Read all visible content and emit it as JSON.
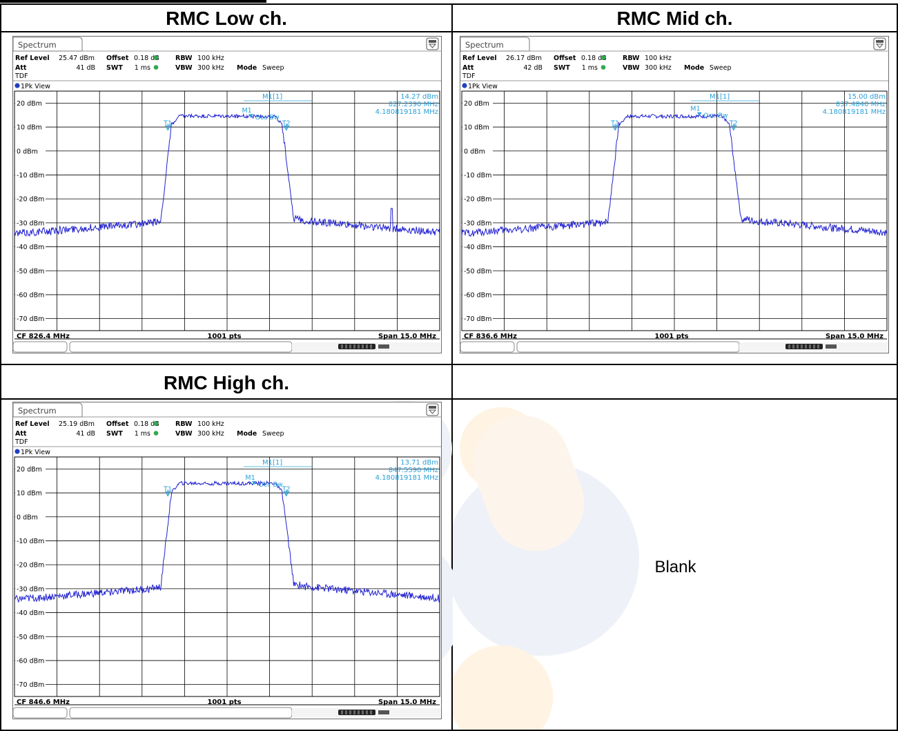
{
  "headers": {
    "low": "RMC Low ch.",
    "mid": "RMC Mid ch.",
    "high": "RMC High ch.",
    "empty": ""
  },
  "blank_label": "Blank",
  "colors": {
    "trace": "#1f1fd0",
    "marker": "#2aa0d8",
    "grid": "#000000",
    "screen_bg": "#ffffff"
  },
  "panels": [
    {
      "key": "low",
      "tab": "Spectrum",
      "ref_level_label": "Ref Level",
      "ref_level": "25.47 dBm",
      "offset_label": "Offset",
      "offset": "0.18 dB",
      "rbw_label": "RBW",
      "rbw": "100 kHz",
      "att_label": "Att",
      "att": "41 dB",
      "swt_label": "SWT",
      "swt": "1 ms",
      "vbw_label": "VBW",
      "vbw": "300 kHz",
      "mode_label": "Mode",
      "mode": "Sweep",
      "tdf": "TDF",
      "view": "1Pk View",
      "marker_name": "M1[1]",
      "marker_level": "14.27 dBm",
      "marker_freq": "827.2390 MHz",
      "occ_bw_value": "4.180819181 MHz",
      "cf": "CF 826.4 MHz",
      "pts": "1001 pts",
      "span": "Span 15.0 MHz",
      "m1": "M1",
      "t1": "T1",
      "t2": "T2",
      "occ_bw_label": "Occ Bw",
      "spur": true
    },
    {
      "key": "mid",
      "tab": "Spectrum",
      "ref_level_label": "Ref Level",
      "ref_level": "26.17 dBm",
      "offset_label": "Offset",
      "offset": "0.18 dB",
      "rbw_label": "RBW",
      "rbw": "100 kHz",
      "att_label": "Att",
      "att": "42 dB",
      "swt_label": "SWT",
      "swt": "1 ms",
      "vbw_label": "VBW",
      "vbw": "300 kHz",
      "mode_label": "Mode",
      "mode": "Sweep",
      "tdf": "TDF",
      "view": "1Pk View",
      "marker_name": "M1[1]",
      "marker_level": "15.00 dBm",
      "marker_freq": "837.4840 MHz",
      "occ_bw_value": "4.180819181 MHz",
      "cf": "CF 836.6 MHz",
      "pts": "1001 pts",
      "span": "Span 15.0 MHz",
      "m1": "M1",
      "t1": "T1",
      "t2": "T2",
      "occ_bw_label": "Occ Bw",
      "spur": false
    },
    {
      "key": "high",
      "tab": "Spectrum",
      "ref_level_label": "Ref Level",
      "ref_level": "25.19 dBm",
      "offset_label": "Offset",
      "offset": "0.18 dB",
      "rbw_label": "RBW",
      "rbw": "100 kHz",
      "att_label": "Att",
      "att": "41 dB",
      "swt_label": "SWT",
      "swt": "1 ms",
      "vbw_label": "VBW",
      "vbw": "300 kHz",
      "mode_label": "Mode",
      "mode": "Sweep",
      "tdf": "TDF",
      "view": "1Pk View",
      "marker_name": "M1[1]",
      "marker_level": "13.71 dBm",
      "marker_freq": "847.5590 MHz",
      "occ_bw_value": "4.180819181 MHz",
      "cf": "CF 846.6 MHz",
      "pts": "1001 pts",
      "span": "Span 15.0 MHz",
      "m1": "M1",
      "t1": "T1",
      "t2": "T2",
      "occ_bw_label": "Occ Bw",
      "spur": false
    }
  ],
  "chart_data": [
    {
      "type": "line",
      "xlabel": "",
      "ylabel": "",
      "x_center_mhz": 826.4,
      "x_span_mhz": 15.0,
      "ylim": [
        -75,
        25
      ],
      "yticks": [
        "20 dBm",
        "10 dBm",
        "0 dBm",
        "-10 dBm",
        "-20 dBm",
        "-30 dBm",
        "-40 dBm",
        "-50 dBm",
        "-60 dBm",
        "-70 dBm"
      ],
      "series": [
        {
          "shape": [
            [
              824.3,
              -29
            ],
            [
              824.45,
              12
            ],
            [
              828.3,
              12
            ],
            [
              828.47,
              -29
            ]
          ],
          "noise_floor": -32,
          "plateau": 15
        }
      ],
      "marker": {
        "x": 827.239,
        "y": 14.27
      },
      "t1_mhz": 824.31,
      "t2_mhz": 828.49
    },
    {
      "type": "line",
      "xlabel": "",
      "ylabel": "",
      "x_center_mhz": 836.6,
      "x_span_mhz": 15.0,
      "ylim": [
        -75,
        25
      ],
      "yticks": [
        "20 dBm",
        "10 dBm",
        "0 dBm",
        "-10 dBm",
        "-20 dBm",
        "-30 dBm",
        "-40 dBm",
        "-50 dBm",
        "-60 dBm",
        "-70 dBm"
      ],
      "series": [
        {
          "noise_floor": -32,
          "plateau": 15
        }
      ],
      "marker": {
        "x": 837.484,
        "y": 15.0
      },
      "t1_mhz": 834.51,
      "t2_mhz": 838.69
    },
    {
      "type": "line",
      "xlabel": "",
      "ylabel": "",
      "x_center_mhz": 846.6,
      "x_span_mhz": 15.0,
      "ylim": [
        -75,
        25
      ],
      "yticks": [
        "20 dBm",
        "10 dBm",
        "0 dBm",
        "-10 dBm",
        "-20 dBm",
        "-30 dBm",
        "-40 dBm",
        "-50 dBm",
        "-60 dBm",
        "-70 dBm"
      ],
      "series": [
        {
          "noise_floor": -32,
          "plateau": 14.5
        }
      ],
      "marker": {
        "x": 847.559,
        "y": 13.71
      },
      "t1_mhz": 844.51,
      "t2_mhz": 848.69
    }
  ]
}
